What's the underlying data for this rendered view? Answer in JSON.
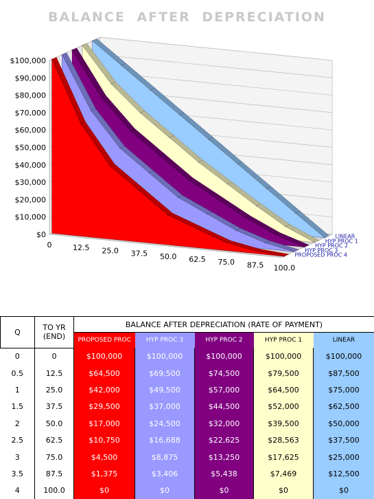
{
  "chart_data": {
    "type": "area",
    "title": "BALANCE AFTER DEPRECIATION",
    "x": [
      0,
      12.5,
      25.0,
      37.5,
      50.0,
      62.5,
      75.0,
      87.5,
      100.0
    ],
    "x_tick_labels": [
      "0",
      "12.5",
      "25.0",
      "37.5",
      "50.0",
      "62.5",
      "75.0",
      "87.5",
      "100.0"
    ],
    "y_tick_labels": [
      "$0",
      "$10,000",
      "$20,000",
      "$30,000",
      "$40,000",
      "$50,000",
      "$60,000",
      "$70,000",
      "$80,000",
      "$90,000",
      "$100,000"
    ],
    "ylim": [
      0,
      100000
    ],
    "series": [
      {
        "name": "PROPOSED PROC 4",
        "color": "#ff0000",
        "values": [
          100000,
          64500,
          42000,
          29500,
          17000,
          10750,
          4500,
          1375,
          0
        ]
      },
      {
        "name": "HYP PROC 3",
        "color": "#9999ff",
        "values": [
          100000,
          69500,
          49500,
          37000,
          24500,
          16688,
          8875,
          3406,
          0
        ]
      },
      {
        "name": "HYP PROC 2",
        "color": "#800080",
        "values": [
          100000,
          74500,
          57000,
          44500,
          32000,
          22625,
          13250,
          5438,
          0
        ]
      },
      {
        "name": "HYP PROC 1",
        "color": "#ffffcc",
        "values": [
          100000,
          79500,
          64500,
          52000,
          39500,
          28563,
          17625,
          7469,
          0
        ]
      },
      {
        "name": "LINEAR",
        "color": "#99ccff",
        "values": [
          100000,
          87500,
          75000,
          62500,
          50000,
          37500,
          25000,
          12500,
          0
        ]
      }
    ],
    "legend_placement": "right"
  },
  "table": {
    "col_q": "Q",
    "col_x": "TO YR (END)",
    "group_header": "BALANCE AFTER DEPRECIATION (RATE OF PAYMENT)",
    "series_headers": [
      "PROPOSED PROC",
      "HYP PROC 3",
      "HYP PROC 2",
      "HYP PROC 1",
      "LINEAR"
    ],
    "rows": [
      {
        "q": "0",
        "x": "0",
        "vals": [
          "$100,000",
          "$100,000",
          "$100,000",
          "$100,000",
          "$100,000"
        ]
      },
      {
        "q": "0.5",
        "x": "12.5",
        "vals": [
          "$64,500",
          "$69,500",
          "$74,500",
          "$79,500",
          "$87,500"
        ]
      },
      {
        "q": "1",
        "x": "25.0",
        "vals": [
          "$42,000",
          "$49,500",
          "$57,000",
          "$64,500",
          "$75,000"
        ]
      },
      {
        "q": "1.5",
        "x": "37.5",
        "vals": [
          "$29,500",
          "$37,000",
          "$44,500",
          "$52,000",
          "$62,500"
        ]
      },
      {
        "q": "2",
        "x": "50.0",
        "vals": [
          "$17,000",
          "$24,500",
          "$32,000",
          "$39,500",
          "$50,000"
        ]
      },
      {
        "q": "2.5",
        "x": "62.5",
        "vals": [
          "$10,750",
          "$16,688",
          "$22,625",
          "$28,563",
          "$37,500"
        ]
      },
      {
        "q": "3",
        "x": "75.0",
        "vals": [
          "$4,500",
          "$8,875",
          "$13,250",
          "$17,625",
          "$25,000"
        ]
      },
      {
        "q": "3.5",
        "x": "87.5",
        "vals": [
          "$1,375",
          "$3,406",
          "$5,438",
          "$7,469",
          "$12,500"
        ]
      },
      {
        "q": "4",
        "x": "100.0",
        "vals": [
          "$0",
          "$0",
          "$0",
          "$0",
          "$0"
        ]
      }
    ],
    "column_colors": [
      "#ff0000",
      "#9999ff",
      "#800080",
      "#ffffcc",
      "#99ccff"
    ],
    "text_colors": [
      "#ffffff",
      "#ffffff",
      "#ffffff",
      "#000000",
      "#000000"
    ]
  }
}
